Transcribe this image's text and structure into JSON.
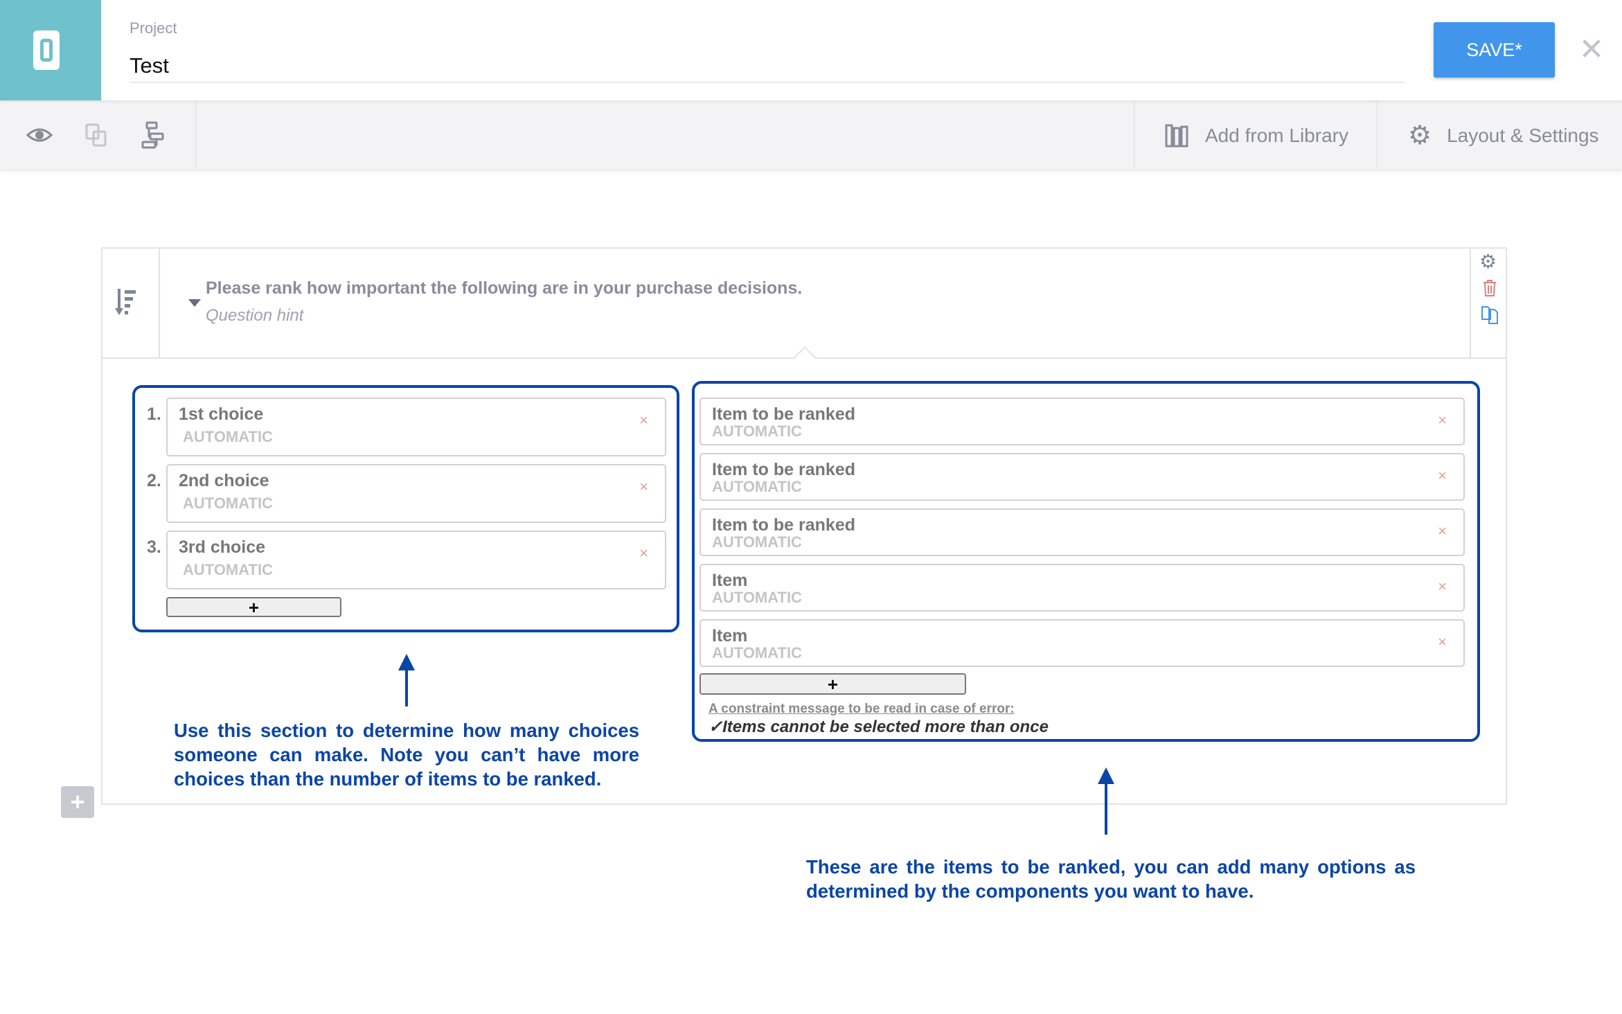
{
  "header": {
    "project_label": "Project",
    "project_name": "Test",
    "save_label": "SAVE*",
    "close_icon": "close-icon",
    "logo_icon": "app-logo"
  },
  "toolbar": {
    "icons": [
      "eye-icon",
      "copy-layers-icon",
      "flow-icon"
    ],
    "library_label": "Add from Library",
    "settings_label": "Layout & Settings"
  },
  "question": {
    "title": "Please rank how important the following are in your purchase decisions.",
    "hint": "Question hint",
    "type_icon": "sort-rank-icon",
    "actions": [
      "gear-icon",
      "trash-icon",
      "duplicate-icon"
    ]
  },
  "choices": [
    {
      "number": "1.",
      "label": "1st choice",
      "sub": "AUTOMATIC"
    },
    {
      "number": "2.",
      "label": "2nd choice",
      "sub": "AUTOMATIC"
    },
    {
      "number": "3.",
      "label": "3rd choice",
      "sub": "AUTOMATIC"
    }
  ],
  "items": [
    {
      "label": "Item to be ranked",
      "sub": "AUTOMATIC"
    },
    {
      "label": "Item to be ranked",
      "sub": "AUTOMATIC"
    },
    {
      "label": "Item to be ranked",
      "sub": "AUTOMATIC"
    },
    {
      "label": "Item",
      "sub": "AUTOMATIC"
    },
    {
      "label": "Item",
      "sub": "AUTOMATIC"
    }
  ],
  "remove_symbol": "×",
  "add_symbol": "+",
  "constraint": {
    "label": "A constraint message to be read in case of error:",
    "message": "✓Items cannot be selected more than once"
  },
  "annotations": {
    "left": "Use this section to determine how many choices someone can make. Note you can’t have more choices than the number of items to be ranked.",
    "right": "These are the items to be ranked, you can add many options as determined by the components you want to have."
  },
  "colors": {
    "brand": "#6fc1cc",
    "save": "#4196ec",
    "annotation": "#0b45a6",
    "remove": "#e0a097"
  }
}
